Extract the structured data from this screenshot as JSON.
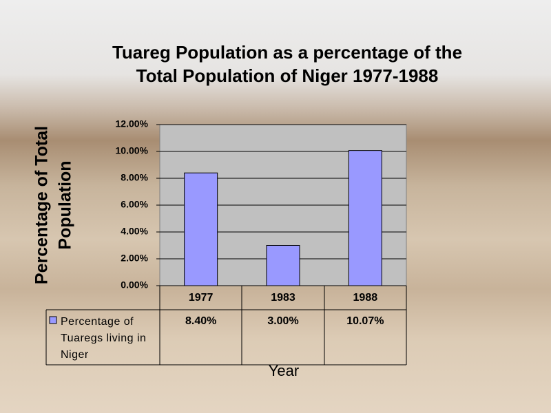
{
  "chart_data": {
    "type": "bar",
    "title": [
      "Tuareg Population as a percentage of the",
      "Total Population of Niger 1977-1988"
    ],
    "y_label": [
      "Percentage of Total",
      "Population"
    ],
    "x_label": "Year",
    "categories": [
      "1977",
      "1983",
      "1988"
    ],
    "series": [
      {
        "name": "Percentage of Tuaregs living in Niger",
        "color": "#9999ff",
        "values": [
          8.4,
          3.0,
          10.07
        ],
        "value_labels": [
          "8.40%",
          "3.00%",
          "10.07%"
        ]
      }
    ],
    "ylim": [
      0,
      12
    ],
    "yticks": [
      {
        "value": 0,
        "label": "0.00%"
      },
      {
        "value": 2,
        "label": "2.00%"
      },
      {
        "value": 4,
        "label": "4.00%"
      },
      {
        "value": 6,
        "label": "6.00%"
      },
      {
        "value": 8,
        "label": "8.00%"
      },
      {
        "value": 10,
        "label": "10.00%"
      },
      {
        "value": 12,
        "label": "12.00%"
      }
    ],
    "grid": true
  }
}
